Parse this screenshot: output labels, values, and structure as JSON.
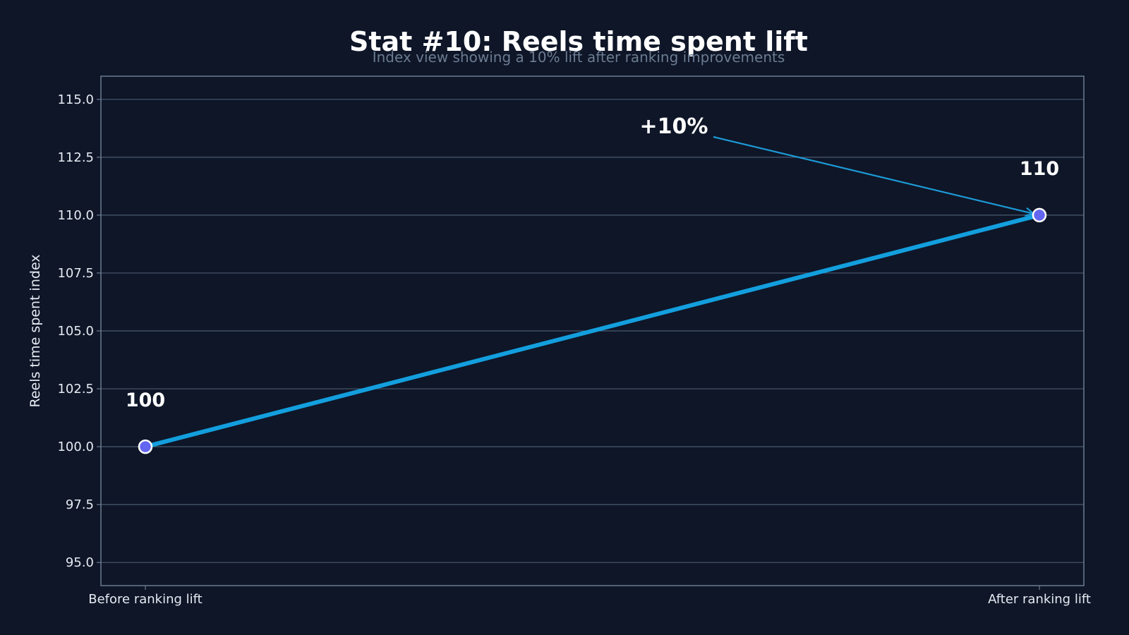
{
  "chart_data": {
    "type": "line",
    "title": "Stat #10: Reels time spent lift",
    "subtitle": "Index view showing a 10% lift after ranking improvements",
    "xlabel": "",
    "ylabel": "Reels time spent index",
    "categories": [
      "Before ranking lift",
      "After ranking lift"
    ],
    "series": [
      {
        "values": [
          100,
          110
        ]
      }
    ],
    "data_labels": [
      "100",
      "110"
    ],
    "ylim": [
      94,
      116
    ],
    "yticks": [
      95.0,
      97.5,
      100.0,
      102.5,
      105.0,
      107.5,
      110.0,
      112.5,
      115.0
    ],
    "ytick_labels": [
      "95.0",
      "97.5",
      "100.0",
      "102.5",
      "105.0",
      "107.5",
      "110.0",
      "112.5",
      "115.0"
    ],
    "grid": true,
    "legend": "none",
    "annotation": {
      "text": "+10%",
      "points_to_category": "After ranking lift",
      "points_to_value": 110
    },
    "colors": {
      "background": "#0e1628",
      "line": "#139fde",
      "marker": "#6366f1",
      "marker_edge": "#ffffff",
      "grid": "#4b5a70",
      "frame": "#6b7b91",
      "arrow": "#1d9ad6"
    }
  }
}
